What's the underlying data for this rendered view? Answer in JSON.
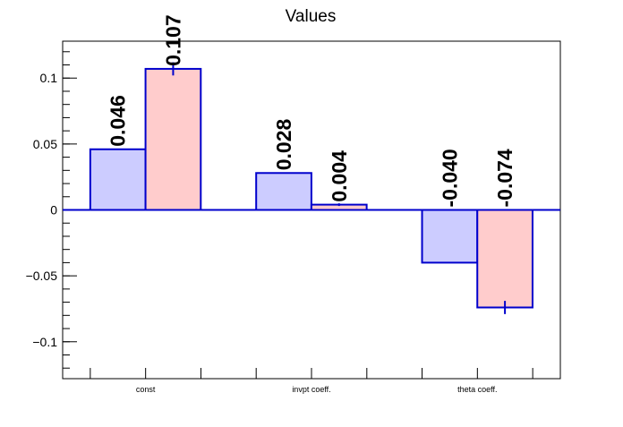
{
  "chart_data": {
    "type": "bar",
    "title": "Values",
    "categories": [
      "const",
      "invpt coeff.",
      "theta coeff."
    ],
    "series": [
      {
        "values": [
          0.046,
          0.028,
          -0.04
        ],
        "labels": [
          "0.046",
          "0.028",
          "-0.040"
        ],
        "errors": [
          0,
          0,
          0
        ],
        "fill": "#ccccff"
      },
      {
        "values": [
          0.107,
          0.004,
          -0.074
        ],
        "labels": [
          "0.107",
          "0.004",
          "-0.074"
        ],
        "errors": [
          0.005,
          0.001,
          0.005
        ],
        "fill": "#ffcccc"
      }
    ],
    "ylim": [
      -0.128,
      0.128
    ],
    "yticks": [
      -0.1,
      -0.05,
      0,
      0.05,
      0.1
    ],
    "ytick_labels": [
      "−0.1",
      "−0.05",
      "0",
      "0.05",
      "0.1"
    ],
    "xlabel": "",
    "ylabel": "",
    "grid": false,
    "bar_edge_color": "#0000cc",
    "zero_line_color": "#0000cc"
  }
}
